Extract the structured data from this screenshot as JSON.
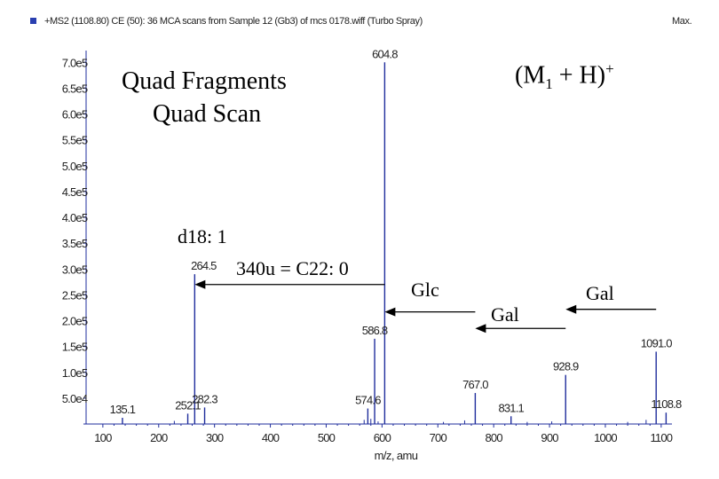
{
  "header": {
    "scan_info": "+MS2 (1108.80) CE (50): 36 MCA scans from Sample 12 (Gb3) of mcs 0178.wiff (Turbo Spray)",
    "max_label": "Max."
  },
  "annotations": {
    "quad_fragments": "Quad Fragments",
    "quad_scan": "Quad Scan",
    "ion_label_main": "(M",
    "ion_label_sub": "1",
    "ion_label_rest": " + H)",
    "ion_label_sup": "+",
    "sphingoid_base": "d18: 1",
    "fatty_acid": "340u = C22: 0",
    "glc": "Glc",
    "gal_1": "Gal",
    "gal_2": "Gal"
  },
  "colors": {
    "peak": "#1f2d9c",
    "axis": "#1f2d9c",
    "header_icon": "#2a3fb0",
    "text": "#000000"
  },
  "chart_data": {
    "type": "bar",
    "title": "",
    "xlabel": "m/z, amu",
    "ylabel": "",
    "xlim": [
      70,
      1105
    ],
    "ylim": [
      0,
      740000
    ],
    "x_ticks": [
      100,
      200,
      300,
      400,
      500,
      600,
      700,
      800,
      900,
      1000,
      1100
    ],
    "y_ticks": [
      {
        "value": 50000,
        "label": "5.0e4"
      },
      {
        "value": 100000,
        "label": "1.0e5"
      },
      {
        "value": 150000,
        "label": "1.5e5"
      },
      {
        "value": 200000,
        "label": "2.0e5"
      },
      {
        "value": 250000,
        "label": "2.5e5"
      },
      {
        "value": 300000,
        "label": "3.0e5"
      },
      {
        "value": 350000,
        "label": "3.5e5"
      },
      {
        "value": 400000,
        "label": "4.0e5"
      },
      {
        "value": 450000,
        "label": "4.5e5"
      },
      {
        "value": 500000,
        "label": "5.0e5"
      },
      {
        "value": 550000,
        "label": "5.5e5"
      },
      {
        "value": 600000,
        "label": "6.0e5"
      },
      {
        "value": 650000,
        "label": "6.5e5"
      },
      {
        "value": 700000,
        "label": "7.0e5"
      }
    ],
    "peaks": [
      {
        "mz": 135.1,
        "intensity": 12000,
        "label": "135.1"
      },
      {
        "mz": 252.1,
        "intensity": 20000,
        "label": "252.1"
      },
      {
        "mz": 264.5,
        "intensity": 290000,
        "label": "264.5"
      },
      {
        "mz": 282.3,
        "intensity": 32000,
        "label": "282.3"
      },
      {
        "mz": 574.6,
        "intensity": 30000,
        "label": "574.6"
      },
      {
        "mz": 586.8,
        "intensity": 165000,
        "label": "586.8"
      },
      {
        "mz": 604.8,
        "intensity": 700000,
        "label": "604.8"
      },
      {
        "mz": 767.0,
        "intensity": 60000,
        "label": "767.0"
      },
      {
        "mz": 831.1,
        "intensity": 15000,
        "label": "831.1"
      },
      {
        "mz": 928.9,
        "intensity": 95000,
        "label": "928.9"
      },
      {
        "mz": 1091.0,
        "intensity": 140000,
        "label": "1091.0"
      },
      {
        "mz": 1108.8,
        "intensity": 22000,
        "label": "1108.8"
      }
    ],
    "minor_peaks": [
      {
        "mz": 228,
        "intensity": 6000
      },
      {
        "mz": 568,
        "intensity": 8000
      },
      {
        "mz": 580,
        "intensity": 10000
      },
      {
        "mz": 593,
        "intensity": 5000
      },
      {
        "mz": 710,
        "intensity": 4000
      },
      {
        "mz": 748,
        "intensity": 7000
      },
      {
        "mz": 860,
        "intensity": 4000
      },
      {
        "mz": 904,
        "intensity": 5000
      },
      {
        "mz": 1040,
        "intensity": 4000
      },
      {
        "mz": 1073,
        "intensity": 8000
      }
    ]
  }
}
